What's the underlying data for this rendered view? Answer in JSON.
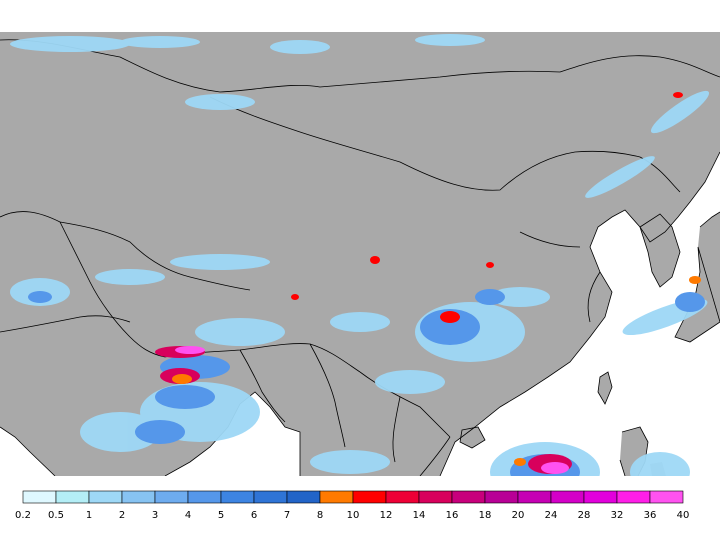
{
  "map": {
    "land_color": "#a9a9a9",
    "ocean_color": "#ffffff",
    "border_color": "#000000"
  },
  "legend": {
    "labels": [
      "0.2",
      "0.5",
      "1",
      "2",
      "3",
      "4",
      "5",
      "6",
      "7",
      "8",
      "10",
      "12",
      "14",
      "16",
      "18",
      "20",
      "24",
      "28",
      "32",
      "36",
      "40"
    ],
    "colors": [
      "#dff8ff",
      "#b4eef6",
      "#9ed8f6",
      "#87c3f2",
      "#6eacef",
      "#5597ea",
      "#3d84e2",
      "#2f74d6",
      "#2264c8",
      "#ff7a00",
      "#ff0000",
      "#ee0036",
      "#d8005c",
      "#c8007c",
      "#b80096",
      "#c600b4",
      "#d400c8",
      "#e200dc",
      "#ff1ee8",
      "#ff52f0"
    ]
  }
}
